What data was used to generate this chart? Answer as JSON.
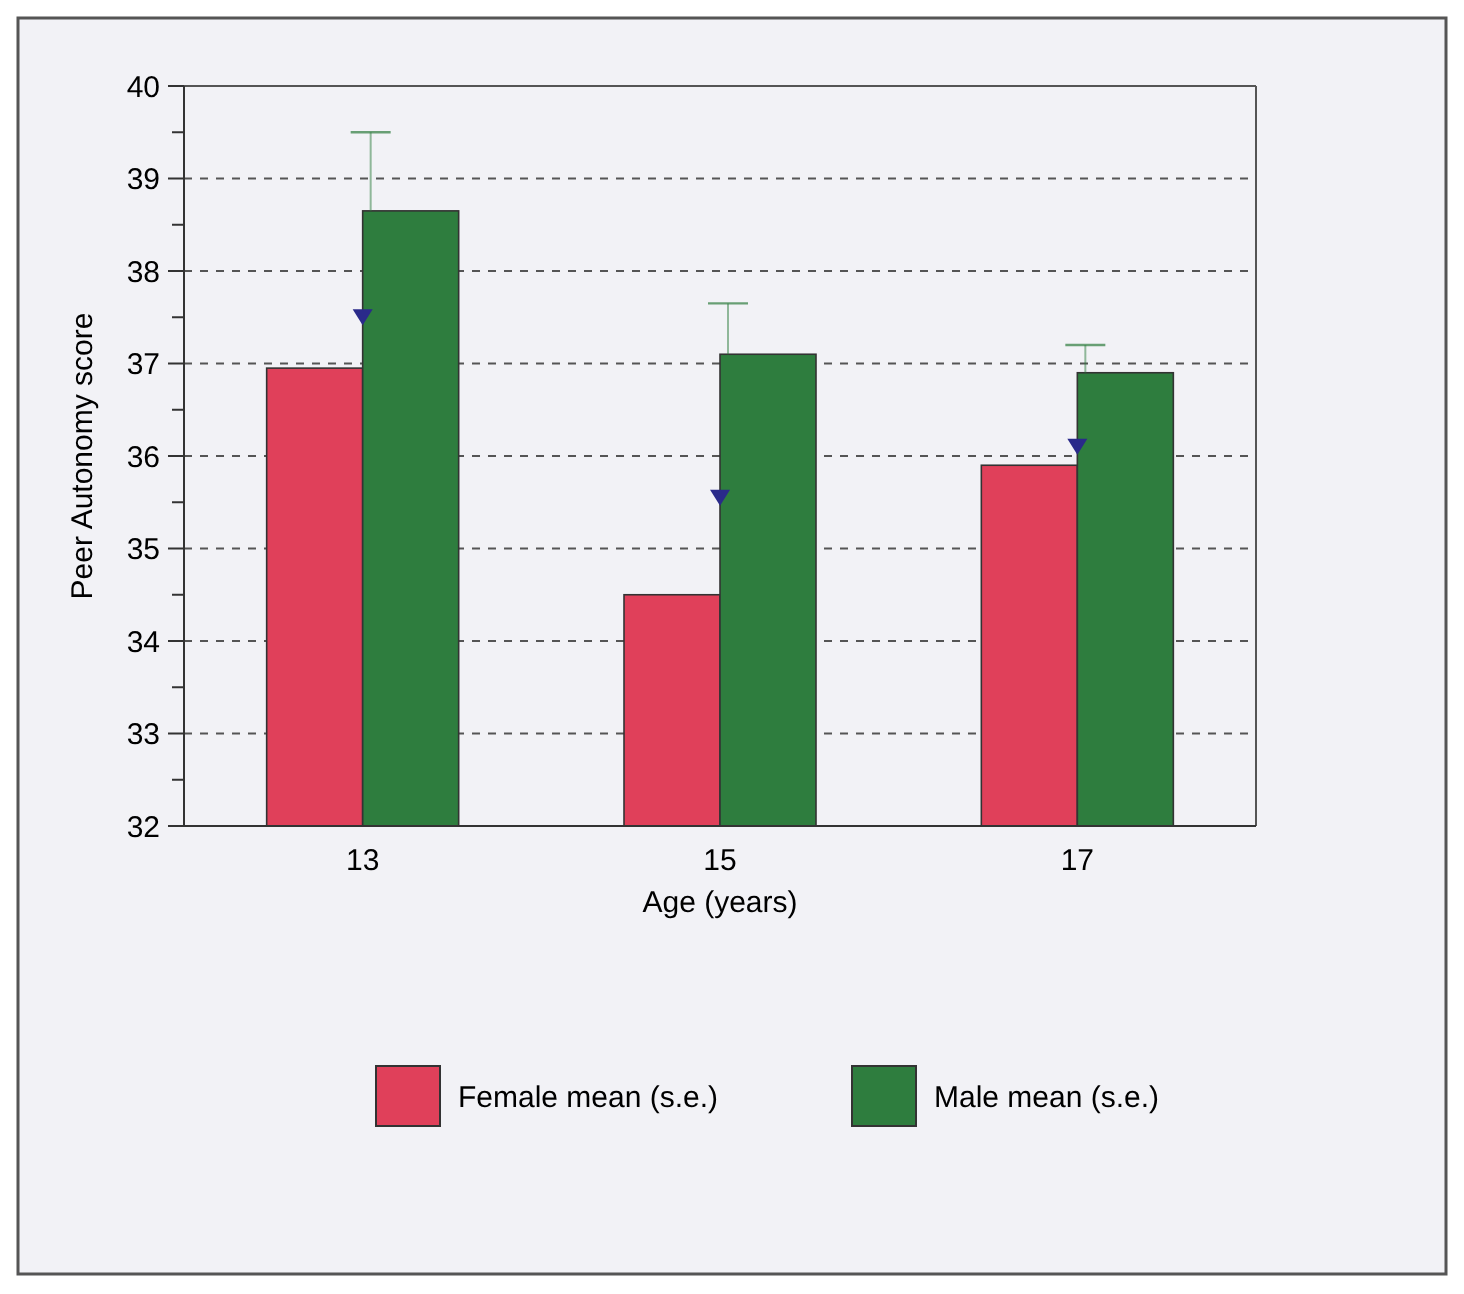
{
  "chart_data": {
    "type": "bar",
    "xlabel": "Age (years)",
    "ylabel": "Peer Autonomy score",
    "categories": [
      "13",
      "15",
      "17"
    ],
    "series": [
      {
        "name": "Female mean (s.e.)",
        "color": "#e0405a",
        "values": [
          36.95,
          34.5,
          35.9
        ]
      },
      {
        "name": "Male mean (s.e.)",
        "color": "#2e7d3e",
        "values": [
          38.65,
          37.1,
          36.9
        ],
        "errors": [
          [
            38.65,
            39.5
          ],
          [
            37.1,
            37.65
          ],
          [
            36.9,
            37.2
          ]
        ]
      },
      {
        "type": "scatter",
        "color": "#2a2a8a",
        "marker": "triangle",
        "x": [
          "13",
          "15",
          "17"
        ],
        "values": [
          37.5,
          35.55,
          36.1
        ]
      }
    ],
    "ylim": [
      32,
      40
    ],
    "yticks": [
      32,
      {
        "value": 32.5,
        "label": null
      },
      33,
      {
        "value": 33.5,
        "label": null
      },
      34,
      {
        "value": 34.5,
        "label": null
      },
      35,
      {
        "value": 35.5,
        "label": null
      },
      36,
      {
        "value": 36.5,
        "label": null
      },
      37,
      {
        "value": 37.5,
        "label": null
      },
      38,
      {
        "value": 38.5,
        "label": null
      },
      39,
      {
        "value": 39.5,
        "label": null
      },
      40
    ],
    "grid": "y",
    "legend": "bottom"
  }
}
